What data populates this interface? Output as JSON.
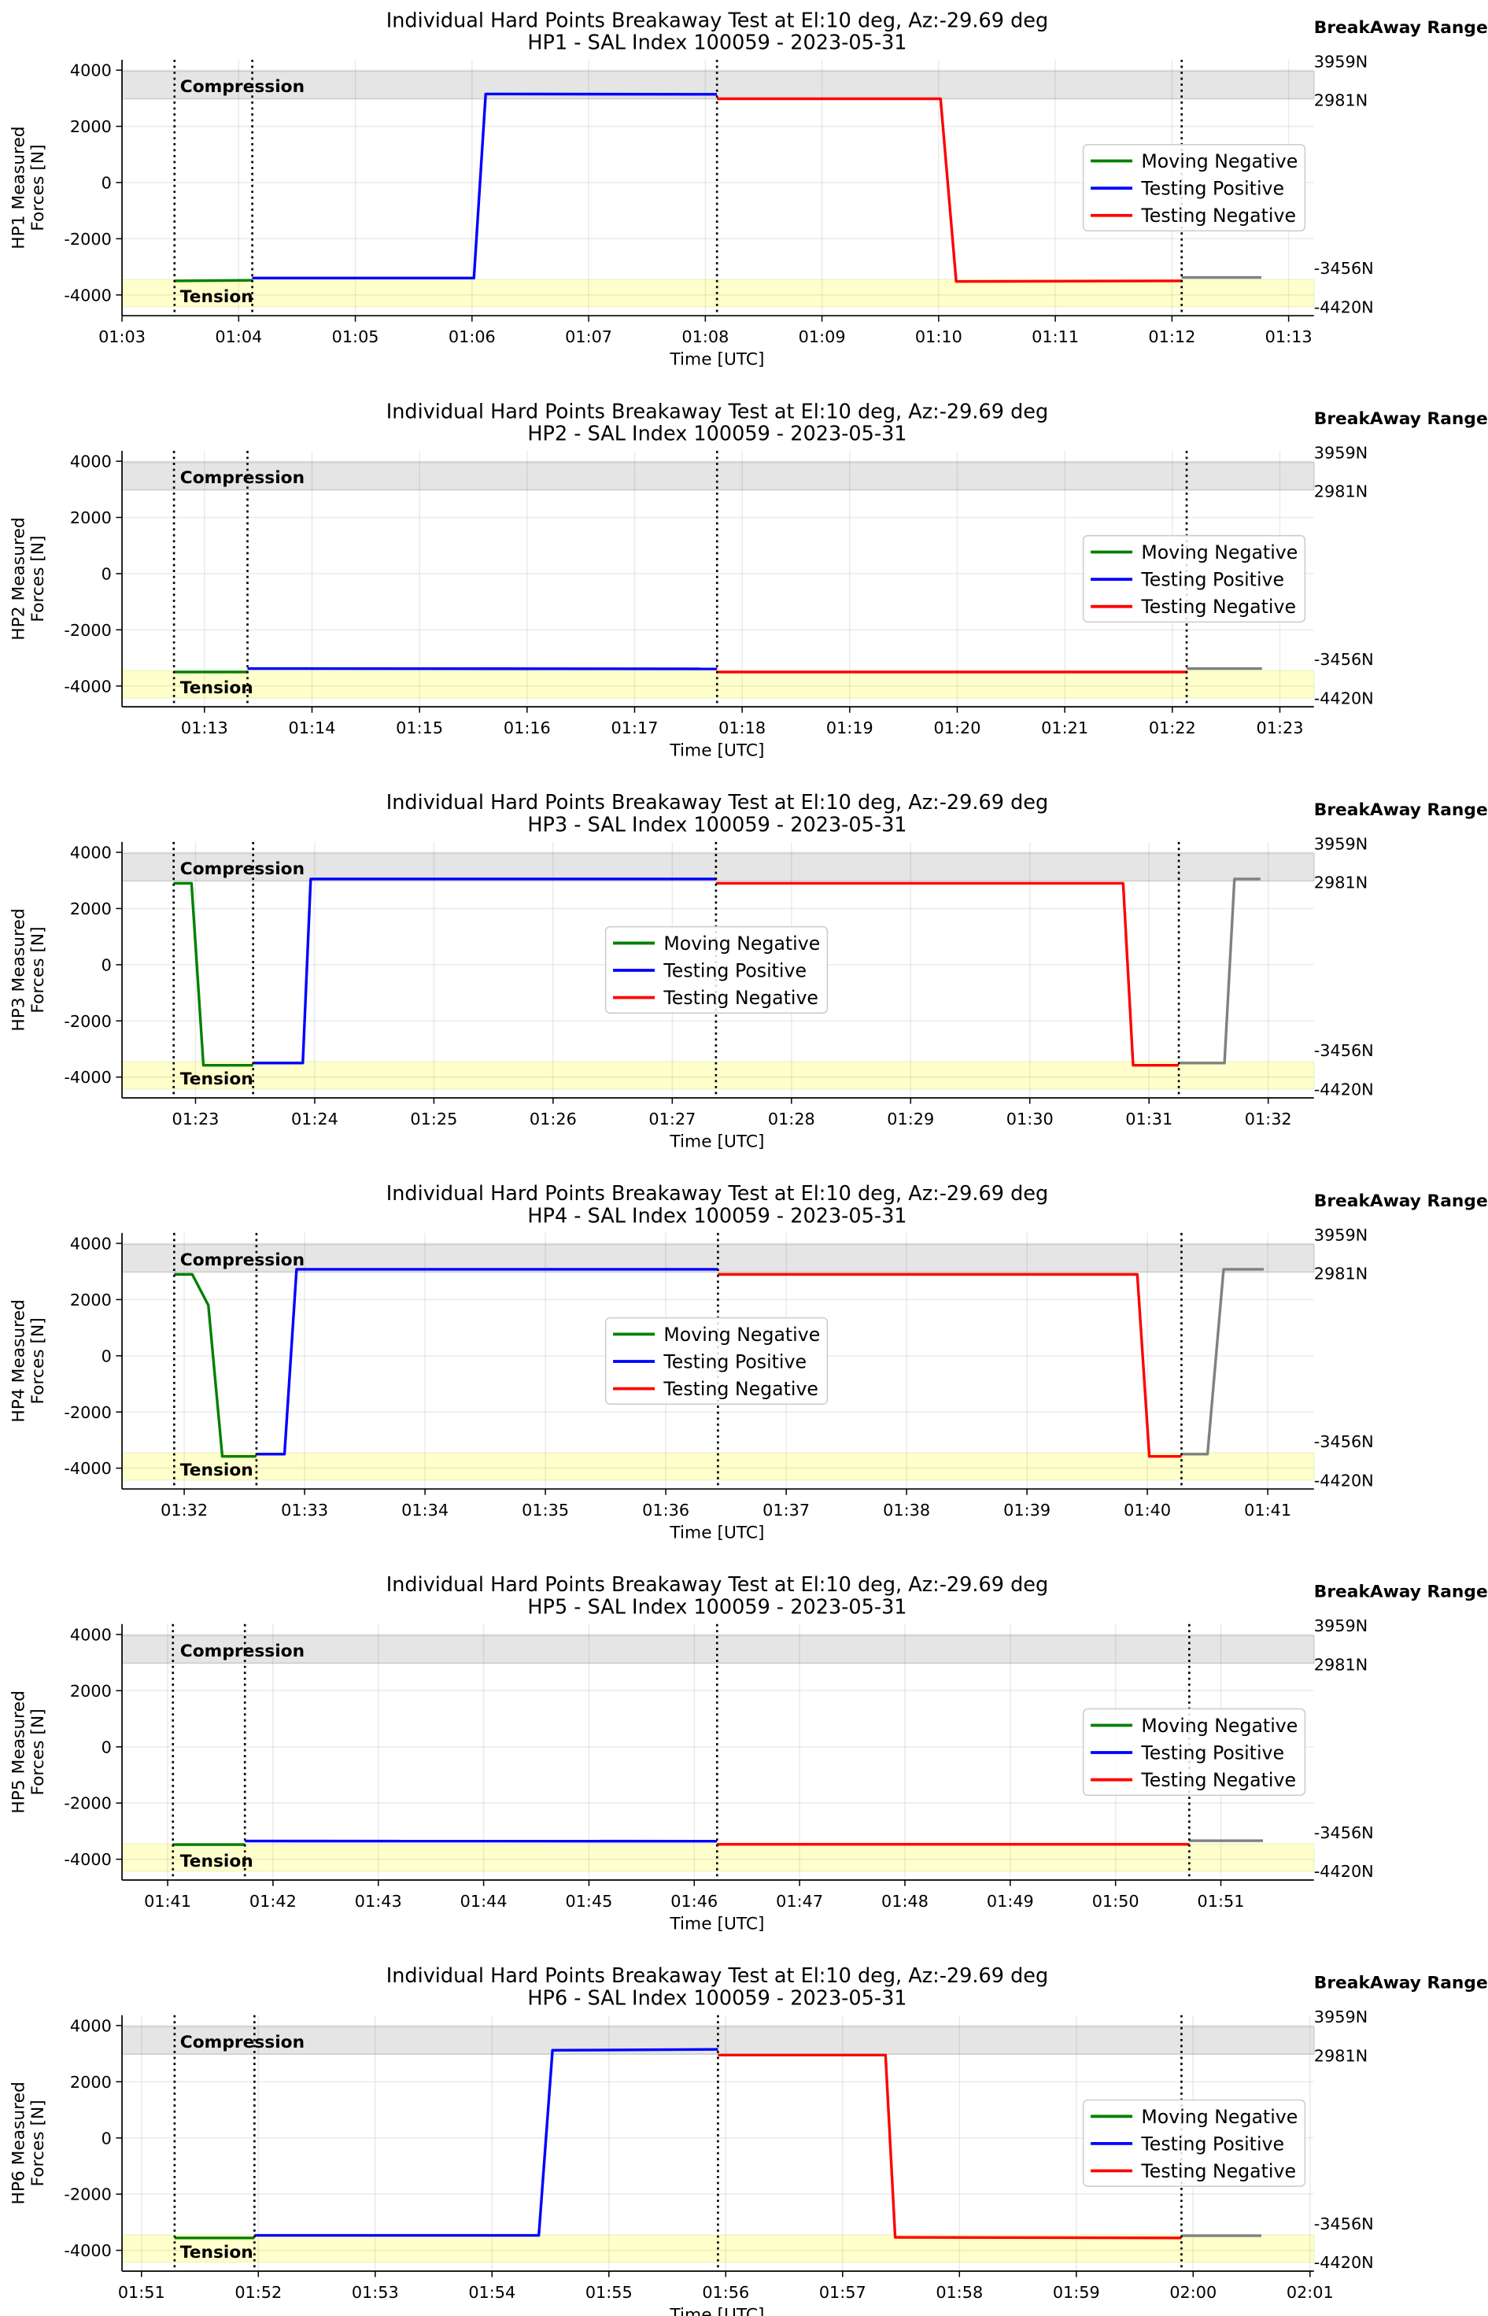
{
  "figure": {
    "breakaway_label": "BreakAway Range:",
    "range_labels": [
      "3959N",
      "2981N",
      "-3456N",
      "-4420N"
    ],
    "compression_band": [
      2981,
      3959
    ],
    "tension_band": [
      -4420,
      -3456
    ],
    "compression_label": "Compression",
    "tension_label": "Tension",
    "colors": {
      "compression": "#e5e5e5",
      "tension": "#ffffcc",
      "green": "#008000",
      "blue": "#0000ff",
      "red": "#ff0000",
      "gray": "#808080"
    },
    "legend": [
      {
        "label": "Moving Negative",
        "color": "#008000"
      },
      {
        "label": "Testing Positive",
        "color": "#0000ff"
      },
      {
        "label": "Testing Negative",
        "color": "#ff0000"
      }
    ]
  },
  "chart_data": [
    {
      "type": "line",
      "title": [
        "Individual Hard Points Breakaway Test at El:10 deg, Az:-29.69 deg",
        "HP1 - SAL Index 100059 - 2023-05-31"
      ],
      "ylabel": [
        "HP1 Measured",
        "Forces [N]"
      ],
      "xlabel": "Time [UTC]",
      "ylim": [
        -4740,
        4370
      ],
      "yticks": [
        4000,
        2000,
        0,
        -2000,
        -4000
      ],
      "xlim": [
        "01:03:00",
        "01:13:13"
      ],
      "xticks": [
        "01:03",
        "01:04",
        "01:05",
        "01:06",
        "01:07",
        "01:08",
        "01:09",
        "01:10",
        "01:11",
        "01:12",
        "01:13"
      ],
      "vlines": [
        "01:03:27",
        "01:04:07",
        "01:08:06",
        "01:12:05"
      ],
      "legend_position": "center-right",
      "grid": true,
      "series": [
        {
          "name": "Moving Negative",
          "color": "#008000",
          "points": [
            [
              "01:03:27",
              -3500
            ],
            [
              "01:04:07",
              -3480
            ]
          ]
        },
        {
          "name": "Testing Positive",
          "color": "#0000ff",
          "points": [
            [
              "01:04:07",
              -3400
            ],
            [
              "01:06:01",
              -3400
            ],
            [
              "01:06:07",
              3150
            ],
            [
              "01:08:06",
              3140
            ]
          ]
        },
        {
          "name": "Testing Negative",
          "color": "#ff0000",
          "points": [
            [
              "01:08:06",
              2980
            ],
            [
              "01:10:01",
              2980
            ],
            [
              "01:10:09",
              -3520
            ],
            [
              "01:12:05",
              -3500
            ]
          ]
        },
        {
          "color": "#808080",
          "points": [
            [
              "01:12:05",
              -3380
            ],
            [
              "01:12:46",
              -3380
            ]
          ]
        }
      ]
    },
    {
      "type": "line",
      "title": [
        "Individual Hard Points Breakaway Test at El:10 deg, Az:-29.69 deg",
        "HP2 - SAL Index 100059 - 2023-05-31"
      ],
      "ylabel": [
        "HP2 Measured",
        "Forces [N]"
      ],
      "xlabel": "Time [UTC]",
      "ylim": [
        -4740,
        4370
      ],
      "yticks": [
        4000,
        2000,
        0,
        -2000,
        -4000
      ],
      "xlim": [
        "01:12:14",
        "01:23:19"
      ],
      "xticks": [
        "01:13",
        "01:14",
        "01:15",
        "01:16",
        "01:17",
        "01:18",
        "01:19",
        "01:20",
        "01:21",
        "01:22",
        "01:23"
      ],
      "vlines": [
        "01:12:43",
        "01:13:24",
        "01:17:46",
        "01:22:08"
      ],
      "legend_position": "center-right",
      "grid": true,
      "series": [
        {
          "name": "Moving Negative",
          "color": "#008000",
          "points": [
            [
              "01:12:43",
              -3500
            ],
            [
              "01:13:24",
              -3500
            ]
          ]
        },
        {
          "name": "Testing Positive",
          "color": "#0000ff",
          "points": [
            [
              "01:13:24",
              -3380
            ],
            [
              "01:17:46",
              -3390
            ]
          ]
        },
        {
          "name": "Testing Negative",
          "color": "#ff0000",
          "points": [
            [
              "01:17:46",
              -3500
            ],
            [
              "01:22:08",
              -3500
            ]
          ]
        },
        {
          "color": "#808080",
          "points": [
            [
              "01:22:08",
              -3380
            ],
            [
              "01:22:50",
              -3380
            ]
          ]
        }
      ]
    },
    {
      "type": "line",
      "title": [
        "Individual Hard Points Breakaway Test at El:10 deg, Az:-29.69 deg",
        "HP3 - SAL Index 100059 - 2023-05-31"
      ],
      "ylabel": [
        "HP3 Measured",
        "Forces [N]"
      ],
      "xlabel": "Time [UTC]",
      "ylim": [
        -4740,
        4370
      ],
      "yticks": [
        4000,
        2000,
        0,
        -2000,
        -4000
      ],
      "xlim": [
        "01:22:23",
        "01:32:23"
      ],
      "xticks": [
        "01:23",
        "01:24",
        "01:25",
        "01:26",
        "01:27",
        "01:28",
        "01:29",
        "01:30",
        "01:31",
        "01:32"
      ],
      "vlines": [
        "01:22:49",
        "01:23:29",
        "01:27:22",
        "01:31:15"
      ],
      "legend_position": "center",
      "grid": true,
      "series": [
        {
          "name": "Moving Negative",
          "color": "#008000",
          "points": [
            [
              "01:22:49",
              2900
            ],
            [
              "01:22:58",
              2900
            ],
            [
              "01:23:04",
              -3580
            ],
            [
              "01:23:29",
              -3580
            ]
          ]
        },
        {
          "name": "Testing Positive",
          "color": "#0000ff",
          "points": [
            [
              "01:23:29",
              -3500
            ],
            [
              "01:23:54",
              -3500
            ],
            [
              "01:23:58",
              3050
            ],
            [
              "01:27:22",
              3050
            ]
          ]
        },
        {
          "name": "Testing Negative",
          "color": "#ff0000",
          "points": [
            [
              "01:27:22",
              2900
            ],
            [
              "01:30:47",
              2900
            ],
            [
              "01:30:52",
              -3580
            ],
            [
              "01:31:15",
              -3580
            ]
          ]
        },
        {
          "color": "#808080",
          "points": [
            [
              "01:31:15",
              -3500
            ],
            [
              "01:31:38",
              -3500
            ],
            [
              "01:31:43",
              3050
            ],
            [
              "01:31:56",
              3050
            ]
          ]
        }
      ]
    },
    {
      "type": "line",
      "title": [
        "Individual Hard Points Breakaway Test at El:10 deg, Az:-29.69 deg",
        "HP4 - SAL Index 100059 - 2023-05-31"
      ],
      "ylabel": [
        "HP4 Measured",
        "Forces [N]"
      ],
      "xlabel": "Time [UTC]",
      "ylim": [
        -4740,
        4370
      ],
      "yticks": [
        4000,
        2000,
        0,
        -2000,
        -4000
      ],
      "xlim": [
        "01:31:29",
        "01:41:23"
      ],
      "xticks": [
        "01:32",
        "01:33",
        "01:34",
        "01:35",
        "01:36",
        "01:37",
        "01:38",
        "01:39",
        "01:40",
        "01:41"
      ],
      "vlines": [
        "01:31:55",
        "01:32:36",
        "01:36:26",
        "01:40:17"
      ],
      "legend_position": "center",
      "grid": true,
      "series": [
        {
          "name": "Moving Negative",
          "color": "#008000",
          "points": [
            [
              "01:31:55",
              2900
            ],
            [
              "01:32:04",
              2900
            ],
            [
              "01:32:12",
              1800
            ],
            [
              "01:32:19",
              -3580
            ],
            [
              "01:32:36",
              -3580
            ]
          ]
        },
        {
          "name": "Testing Positive",
          "color": "#0000ff",
          "points": [
            [
              "01:32:36",
              -3500
            ],
            [
              "01:32:50",
              -3500
            ],
            [
              "01:32:56",
              3080
            ],
            [
              "01:36:26",
              3080
            ]
          ]
        },
        {
          "name": "Testing Negative",
          "color": "#ff0000",
          "points": [
            [
              "01:36:26",
              2900
            ],
            [
              "01:39:55",
              2900
            ],
            [
              "01:40:01",
              -3580
            ],
            [
              "01:40:17",
              -3580
            ]
          ]
        },
        {
          "color": "#808080",
          "points": [
            [
              "01:40:17",
              -3500
            ],
            [
              "01:40:30",
              -3500
            ],
            [
              "01:40:38",
              3080
            ],
            [
              "01:40:58",
              3080
            ]
          ]
        }
      ]
    },
    {
      "type": "line",
      "title": [
        "Individual Hard Points Breakaway Test at El:10 deg, Az:-29.69 deg",
        "HP5 - SAL Index 100059 - 2023-05-31"
      ],
      "ylabel": [
        "HP5 Measured",
        "Forces [N]"
      ],
      "xlabel": "Time [UTC]",
      "ylim": [
        -4740,
        4370
      ],
      "yticks": [
        4000,
        2000,
        0,
        -2000,
        -4000
      ],
      "xlim": [
        "01:40:34",
        "01:51:53"
      ],
      "xticks": [
        "01:41",
        "01:42",
        "01:43",
        "01:44",
        "01:45",
        "01:46",
        "01:47",
        "01:48",
        "01:49",
        "01:50",
        "01:51"
      ],
      "vlines": [
        "01:41:03",
        "01:41:44",
        "01:46:13",
        "01:50:42"
      ],
      "legend_position": "center-right",
      "grid": true,
      "series": [
        {
          "name": "Moving Negative",
          "color": "#008000",
          "points": [
            [
              "01:41:03",
              -3480
            ],
            [
              "01:41:44",
              -3480
            ]
          ]
        },
        {
          "name": "Testing Positive",
          "color": "#0000ff",
          "points": [
            [
              "01:41:44",
              -3350
            ],
            [
              "01:46:13",
              -3360
            ]
          ]
        },
        {
          "name": "Testing Negative",
          "color": "#ff0000",
          "points": [
            [
              "01:46:13",
              -3470
            ],
            [
              "01:50:42",
              -3470
            ]
          ]
        },
        {
          "color": "#808080",
          "points": [
            [
              "01:50:42",
              -3340
            ],
            [
              "01:51:24",
              -3340
            ]
          ]
        }
      ]
    },
    {
      "type": "line",
      "title": [
        "Individual Hard Points Breakaway Test at El:10 deg, Az:-29.69 deg",
        "HP6 - SAL Index 100059 - 2023-05-31"
      ],
      "ylabel": [
        "HP6 Measured",
        "Forces [N]"
      ],
      "xlabel": "Time [UTC]",
      "ylim": [
        -4740,
        4370
      ],
      "yticks": [
        4000,
        2000,
        0,
        -2000,
        -4000
      ],
      "xlim": [
        "01:50:50",
        "02:01:02"
      ],
      "xticks": [
        "01:51",
        "01:52",
        "01:53",
        "01:54",
        "01:55",
        "01:56",
        "01:57",
        "01:58",
        "01:59",
        "02:00",
        "02:01"
      ],
      "vlines": [
        "01:51:17",
        "01:51:58",
        "01:55:56",
        "01:59:54"
      ],
      "legend_position": "center-right",
      "grid": true,
      "series": [
        {
          "name": "Moving Negative",
          "color": "#008000",
          "points": [
            [
              "01:51:17",
              -3560
            ],
            [
              "01:51:58",
              -3560
            ]
          ]
        },
        {
          "name": "Testing Positive",
          "color": "#0000ff",
          "points": [
            [
              "01:51:58",
              -3470
            ],
            [
              "01:54:24",
              -3470
            ],
            [
              "01:54:31",
              3120
            ],
            [
              "01:55:56",
              3150
            ]
          ]
        },
        {
          "name": "Testing Negative",
          "color": "#ff0000",
          "points": [
            [
              "01:55:56",
              2950
            ],
            [
              "01:57:22",
              2950
            ],
            [
              "01:57:27",
              -3540
            ],
            [
              "01:59:54",
              -3560
            ]
          ]
        },
        {
          "color": "#808080",
          "points": [
            [
              "01:59:54",
              -3480
            ],
            [
              "02:00:35",
              -3480
            ]
          ]
        }
      ]
    }
  ]
}
